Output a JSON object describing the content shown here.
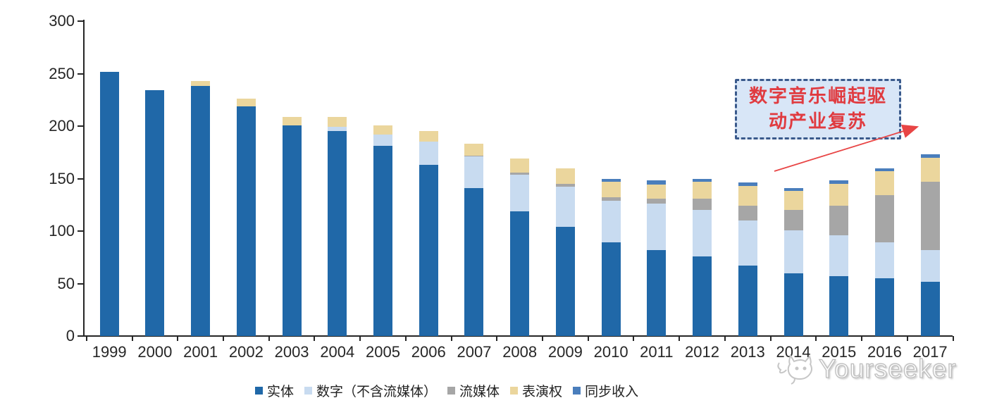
{
  "chart_data": {
    "type": "bar",
    "stacked": true,
    "categories": [
      "1999",
      "2000",
      "2001",
      "2002",
      "2003",
      "2004",
      "2005",
      "2006",
      "2007",
      "2008",
      "2009",
      "2010",
      "2011",
      "2012",
      "2013",
      "2014",
      "2015",
      "2016",
      "2017"
    ],
    "series": [
      {
        "name": "实体",
        "color": "#2068a8",
        "values": [
          252,
          234,
          238,
          219,
          201,
          195,
          181,
          163,
          141,
          119,
          104,
          89,
          82,
          76,
          67,
          60,
          57,
          55,
          52
        ]
      },
      {
        "name": "数字（不含流媒体）",
        "color": "#c8dbf0",
        "values": [
          0,
          0,
          0,
          0,
          0,
          4,
          11,
          22,
          30,
          35,
          38,
          40,
          44,
          44,
          43,
          41,
          39,
          34,
          30
        ]
      },
      {
        "name": "流媒体",
        "color": "#a6a6a6",
        "values": [
          0,
          0,
          0,
          0,
          0,
          0,
          0,
          0,
          1,
          2,
          3,
          3,
          5,
          11,
          14,
          19,
          28,
          45,
          65
        ]
      },
      {
        "name": "表演权",
        "color": "#ebd69d",
        "values": [
          0,
          0,
          5,
          7,
          8,
          10,
          9,
          10,
          11,
          13,
          15,
          15,
          13,
          16,
          19,
          18,
          21,
          23,
          23
        ]
      },
      {
        "name": "同步收入",
        "color": "#4a7ebc",
        "values": [
          0,
          0,
          0,
          0,
          0,
          0,
          0,
          0,
          0,
          0,
          0,
          3,
          4,
          3,
          3,
          3,
          3,
          3,
          3
        ]
      }
    ],
    "ylim": [
      0,
      300
    ],
    "yticks": [
      0,
      50,
      100,
      150,
      200,
      250,
      300
    ],
    "grid": false,
    "legend_position": "bottom"
  },
  "annotation": {
    "line1": "数字音乐崛起驱",
    "line2": "动产业复苏",
    "box_fill": "#d8e6f7",
    "border_color": "#3a5a8c",
    "text_color": "#e03b40",
    "arrow_color": "#e84545"
  },
  "watermark": {
    "text": "Yourseeker"
  },
  "axis": {
    "line_color": "#262626",
    "label_color": "#262626"
  }
}
